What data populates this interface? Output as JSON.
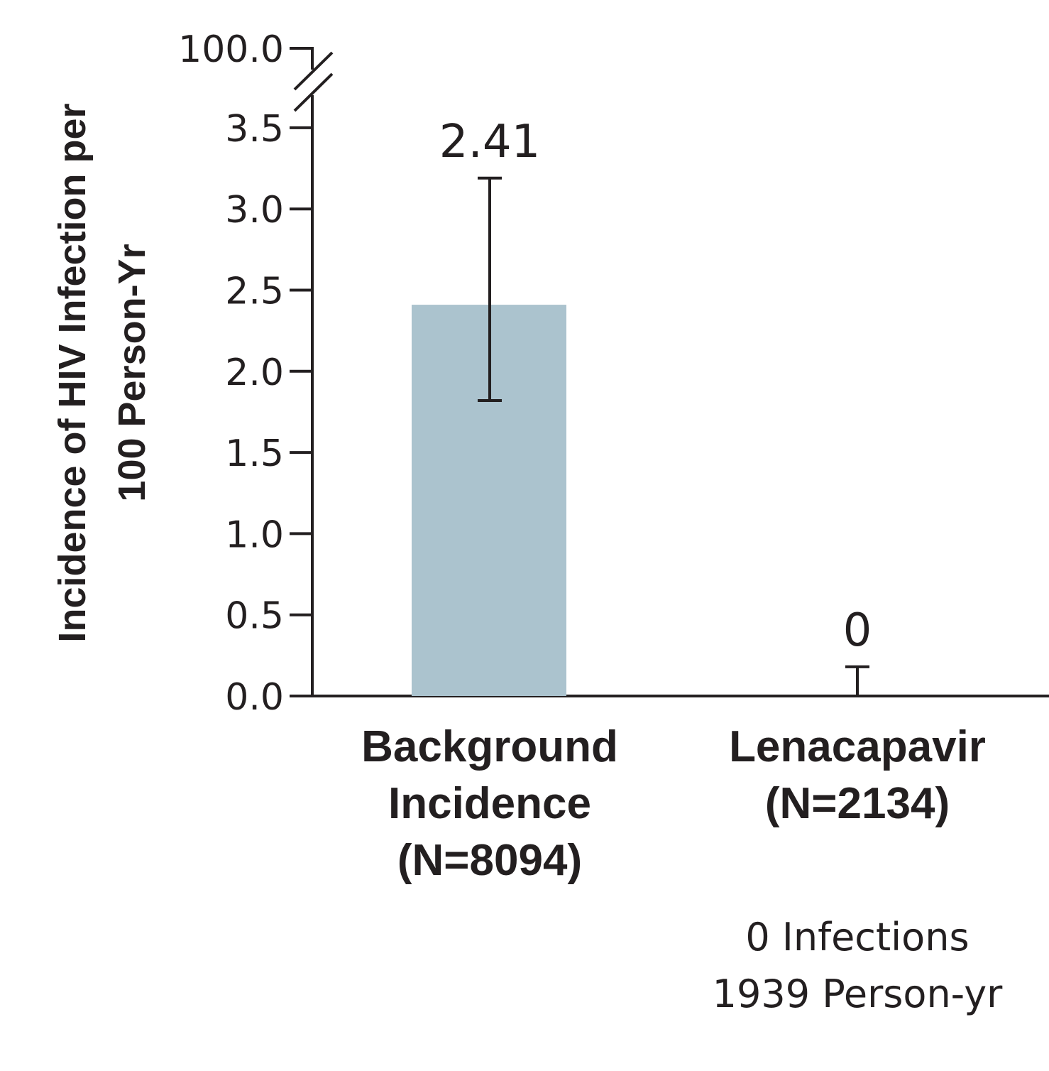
{
  "chart_data": {
    "type": "bar",
    "ylabel_lines": [
      "Incidence of HIV Infection per",
      "100 Person-Yr"
    ],
    "yticks": [
      "0.0",
      "0.5",
      "1.0",
      "1.5",
      "2.0",
      "2.5",
      "3.0",
      "3.5"
    ],
    "ybreak_tick": "100.0",
    "ylim": [
      0,
      3.5
    ],
    "axis_break": true,
    "categories": [
      {
        "lines": [
          "Background",
          "Incidence",
          "(N=8094)"
        ]
      },
      {
        "lines": [
          "Lenacapavir",
          "(N=2134)"
        ],
        "note_lines": [
          "0 Infections",
          "1939 Person-yr"
        ]
      }
    ],
    "values": [
      2.41,
      0
    ],
    "value_labels": [
      "2.41",
      "0"
    ],
    "error_low": [
      1.82,
      0
    ],
    "error_high": [
      3.19,
      0.18
    ],
    "bar_color": "#abc3ce",
    "grid": false
  }
}
